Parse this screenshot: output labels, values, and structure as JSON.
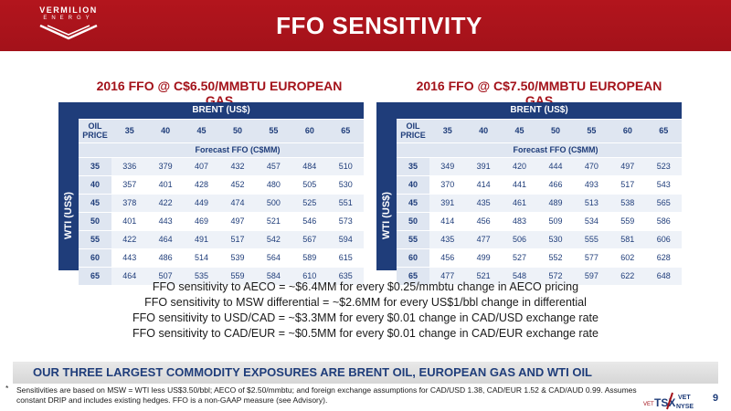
{
  "header": {
    "logo_line1": "VERMILION",
    "logo_line2": "ENERGY",
    "title": "FFO SENSITIVITY"
  },
  "tables": [
    {
      "title": "2016 FFO @ C$6.50/MMBTU EUROPEAN GAS",
      "brent_label": "BRENT (US$)",
      "wti_label": "WTI (US$)",
      "oil_price_label": "OIL PRICE",
      "forecast_label": "Forecast FFO (C$MM)",
      "columns": [
        "35",
        "40",
        "45",
        "50",
        "55",
        "60",
        "65"
      ],
      "rows": [
        {
          "wti": "35",
          "values": [
            "336",
            "379",
            "407",
            "432",
            "457",
            "484",
            "510"
          ]
        },
        {
          "wti": "40",
          "values": [
            "357",
            "401",
            "428",
            "452",
            "480",
            "505",
            "530"
          ]
        },
        {
          "wti": "45",
          "values": [
            "378",
            "422",
            "449",
            "474",
            "500",
            "525",
            "551"
          ]
        },
        {
          "wti": "50",
          "values": [
            "401",
            "443",
            "469",
            "497",
            "521",
            "546",
            "573"
          ]
        },
        {
          "wti": "55",
          "values": [
            "422",
            "464",
            "491",
            "517",
            "542",
            "567",
            "594"
          ]
        },
        {
          "wti": "60",
          "values": [
            "443",
            "486",
            "514",
            "539",
            "564",
            "589",
            "615"
          ]
        },
        {
          "wti": "65",
          "values": [
            "464",
            "507",
            "535",
            "559",
            "584",
            "610",
            "635"
          ]
        }
      ]
    },
    {
      "title": "2016 FFO @ C$7.50/MMBTU EUROPEAN GAS",
      "brent_label": "BRENT (US$)",
      "wti_label": "WTI (US$)",
      "oil_price_label": "OIL PRICE",
      "forecast_label": "Forecast FFO (C$MM)",
      "columns": [
        "35",
        "40",
        "45",
        "50",
        "55",
        "60",
        "65"
      ],
      "rows": [
        {
          "wti": "35",
          "values": [
            "349",
            "391",
            "420",
            "444",
            "470",
            "497",
            "523"
          ]
        },
        {
          "wti": "40",
          "values": [
            "370",
            "414",
            "441",
            "466",
            "493",
            "517",
            "543"
          ]
        },
        {
          "wti": "45",
          "values": [
            "391",
            "435",
            "461",
            "489",
            "513",
            "538",
            "565"
          ]
        },
        {
          "wti": "50",
          "values": [
            "414",
            "456",
            "483",
            "509",
            "534",
            "559",
            "586"
          ]
        },
        {
          "wti": "55",
          "values": [
            "435",
            "477",
            "506",
            "530",
            "555",
            "581",
            "606"
          ]
        },
        {
          "wti": "60",
          "values": [
            "456",
            "499",
            "527",
            "552",
            "577",
            "602",
            "628"
          ]
        },
        {
          "wti": "65",
          "values": [
            "477",
            "521",
            "548",
            "572",
            "597",
            "622",
            "648"
          ]
        }
      ]
    }
  ],
  "notes": [
    "FFO sensitivity to AECO = ~$6.4MM for every $0.25/mmbtu change in AECO pricing",
    "FFO sensitivity to MSW differential = ~$2.6MM for every US$1/bbl change in differential",
    "FFO sensitivity to USD/CAD = ~$3.3MM for every $0.01 change in CAD/USD exchange rate",
    "FFO sensitivity to CAD/EUR = ~$0.5MM for every $0.01 change in CAD/EUR exchange rate"
  ],
  "banner": "OUR THREE LARGEST COMMODITY EXPOSURES ARE BRENT OIL, EUROPEAN GAS AND WTI OIL",
  "footnote": {
    "star": "*",
    "text": "Sensitivities are based on MSW = WTI less US$3.50/bbl; AECO of $2.50/mmbtu; and foreign exchange assumptions for CAD/USD 1.38, CAD/EUR 1.52 & CAD/AUD 0.99. Assumes constant DRIP and includes existing hedges. FFO is a non-GAAP measure (see Advisory)."
  },
  "ticker": {
    "tsx": "TSX",
    "nyse": "NYSE",
    "symbol": "VET",
    "prefix": "VET"
  },
  "page_number": "9",
  "colors": {
    "brand_red": "#a3121a",
    "navy": "#1f3d7a",
    "light_blue": "#dfe6f1"
  }
}
